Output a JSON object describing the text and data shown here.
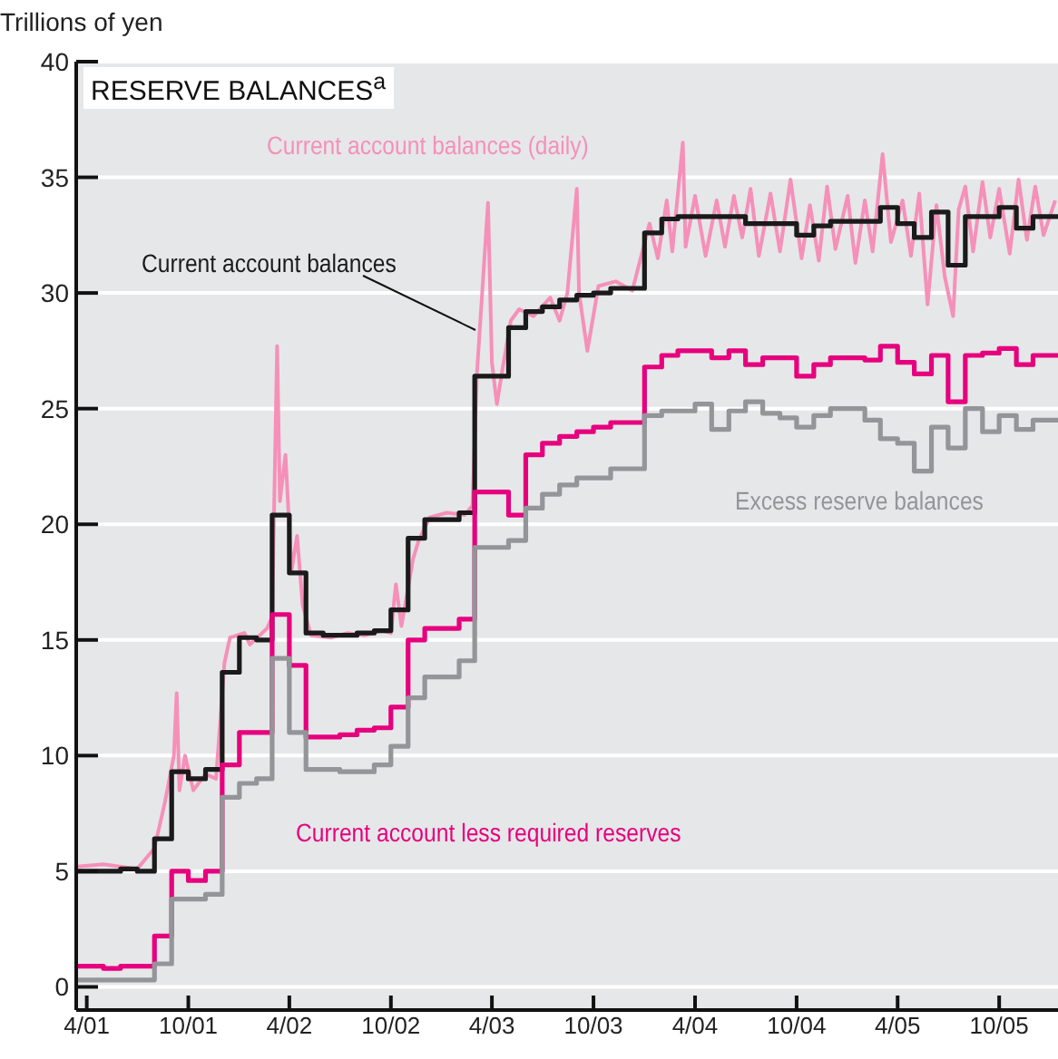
{
  "chart_data": {
    "type": "step",
    "title": "RESERVE BALANCES$^{a}$",
    "ylabel": "Trillions of yen",
    "xlim": [
      "2001-03-13",
      "2006-01-15"
    ],
    "xticks": [
      {
        "value": "2001-04-01",
        "label": "4/01"
      },
      {
        "value": "2001-10-01",
        "label": "10/01"
      },
      {
        "value": "2002-04-01",
        "label": "4/02"
      },
      {
        "value": "2002-10-01",
        "label": "10/02"
      },
      {
        "value": "2003-04-01",
        "label": "4/03"
      },
      {
        "value": "2003-10-01",
        "label": "10/03"
      },
      {
        "value": "2004-04-01",
        "label": "4/04"
      },
      {
        "value": "2004-10-01",
        "label": "10/04"
      },
      {
        "value": "2005-04-01",
        "label": "4/05"
      },
      {
        "value": "2005-10-01",
        "label": "10/05"
      }
    ],
    "ylim": [
      -1,
      40
    ],
    "yticks": [
      0,
      5,
      10,
      15,
      20,
      25,
      30,
      35,
      40
    ],
    "grid": "y",
    "series": [
      {
        "name": "Current account balances (daily)",
        "type": "line",
        "color": "#f590b9",
        "x": [
          "2001-03-15",
          "2001-05-01",
          "2001-07-01",
          "2001-08-01",
          "2001-08-20",
          "2001-09-05",
          "2001-09-10",
          "2001-09-15",
          "2001-09-25",
          "2001-10-10",
          "2001-11-01",
          "2001-11-20",
          "2001-12-05",
          "2001-12-15",
          "2002-01-10",
          "2002-01-20",
          "2002-02-20",
          "2002-03-01",
          "2002-03-10",
          "2002-03-15",
          "2002-03-25",
          "2002-04-05",
          "2002-04-15",
          "2002-04-25",
          "2002-05-10",
          "2002-06-15",
          "2002-07-15",
          "2002-08-15",
          "2002-09-15",
          "2002-10-01",
          "2002-10-10",
          "2002-10-20",
          "2002-11-10",
          "2002-11-20",
          "2002-12-10",
          "2003-01-10",
          "2003-02-10",
          "2003-02-25",
          "2003-03-05",
          "2003-03-25",
          "2003-04-01",
          "2003-04-10",
          "2003-04-20",
          "2003-05-05",
          "2003-05-20",
          "2003-06-15",
          "2003-07-15",
          "2003-08-01",
          "2003-08-15",
          "2003-09-01",
          "2003-09-05",
          "2003-09-20",
          "2003-10-10",
          "2003-11-10",
          "2003-12-10",
          "2004-01-10",
          "2004-01-25",
          "2004-02-10",
          "2004-02-20",
          "2004-03-10",
          "2004-03-15",
          "2004-04-01",
          "2004-04-20",
          "2004-05-10",
          "2004-05-25",
          "2004-06-10",
          "2004-06-25",
          "2004-07-10",
          "2004-07-25",
          "2004-08-15",
          "2004-09-01",
          "2004-09-20",
          "2004-10-10",
          "2004-10-25",
          "2004-11-10",
          "2004-11-25",
          "2004-12-10",
          "2005-01-01",
          "2005-01-15",
          "2005-02-01",
          "2005-02-15",
          "2005-03-05",
          "2005-03-20",
          "2005-04-10",
          "2005-04-25",
          "2005-05-10",
          "2005-05-25",
          "2005-06-10",
          "2005-06-25",
          "2005-07-10",
          "2005-07-20",
          "2005-08-01",
          "2005-08-15",
          "2005-09-01",
          "2005-09-15",
          "2005-10-01",
          "2005-10-20",
          "2005-11-05",
          "2005-11-20",
          "2005-12-05",
          "2005-12-20",
          "2006-01-10"
        ],
        "values": [
          5.2,
          5.3,
          5.1,
          6.0,
          8.0,
          10.0,
          12.7,
          8.5,
          10.0,
          8.5,
          9.2,
          9.0,
          14.0,
          15.1,
          15.3,
          14.8,
          15.5,
          16.0,
          27.7,
          21.0,
          23.0,
          18.0,
          19.5,
          16.5,
          15.2,
          15.1,
          15.3,
          15.2,
          15.4,
          15.3,
          17.4,
          15.6,
          18.5,
          19.3,
          20.3,
          20.5,
          20.4,
          20.8,
          26.5,
          33.9,
          27.0,
          25.2,
          26.7,
          28.8,
          29.3,
          29.0,
          29.8,
          28.8,
          30.0,
          34.5,
          30.0,
          27.5,
          30.3,
          30.5,
          30.1,
          33.0,
          31.5,
          34.0,
          31.8,
          36.5,
          32.0,
          34.2,
          31.6,
          34.0,
          32.0,
          34.2,
          32.4,
          34.5,
          31.6,
          34.3,
          31.8,
          34.9,
          31.5,
          33.8,
          31.4,
          34.6,
          31.9,
          34.2,
          31.3,
          34.0,
          31.8,
          36.0,
          32.2,
          34.0,
          31.6,
          34.3,
          29.5,
          33.8,
          30.7,
          29.0,
          33.6,
          34.6,
          31.8,
          34.8,
          32.4,
          34.5,
          31.7,
          34.9,
          32.3,
          34.6,
          32.5,
          34.0
        ]
      },
      {
        "name": "Current account balances",
        "color": "#1a1a1a",
        "x": [
          "2001-03-13",
          "2001-06",
          "2001-07",
          "2001-08",
          "2001-09",
          "2001-10",
          "2001-11",
          "2001-12",
          "2002-01",
          "2002-02",
          "2002-03",
          "2002-04",
          "2002-05",
          "2002-06",
          "2002-08",
          "2002-09",
          "2002-10",
          "2002-11",
          "2002-12",
          "2003-02",
          "2003-03",
          "2003-05",
          "2003-06",
          "2003-07",
          "2003-08",
          "2003-09",
          "2003-10",
          "2003-11",
          "2004-01",
          "2004-02",
          "2004-03",
          "2004-07",
          "2004-10",
          "2004-11",
          "2004-12",
          "2005-03",
          "2005-04",
          "2005-05",
          "2005-06",
          "2005-07",
          "2005-08",
          "2005-10",
          "2005-11",
          "2005-12",
          "2006-01-15"
        ],
        "values": [
          5.0,
          5.1,
          5.0,
          6.4,
          9.3,
          9.0,
          9.4,
          13.6,
          15.1,
          15.0,
          20.4,
          17.9,
          15.3,
          15.2,
          15.3,
          15.4,
          16.3,
          19.4,
          20.2,
          20.5,
          26.4,
          28.5,
          29.2,
          29.4,
          29.7,
          29.9,
          30.0,
          30.2,
          32.6,
          33.2,
          33.3,
          33.0,
          32.5,
          32.9,
          33.1,
          33.7,
          33.0,
          32.4,
          33.5,
          31.2,
          33.3,
          33.7,
          32.8,
          33.3,
          33.3
        ]
      },
      {
        "name": "Current account less required reserves",
        "color": "#e6007e",
        "x": [
          "2001-03-13",
          "2001-05",
          "2001-06",
          "2001-08",
          "2001-09",
          "2001-10",
          "2001-11",
          "2001-12",
          "2002-01",
          "2002-03",
          "2002-04",
          "2002-05",
          "2002-07",
          "2002-08",
          "2002-09",
          "2002-10",
          "2002-11",
          "2002-12",
          "2003-02",
          "2003-03",
          "2003-05",
          "2003-06",
          "2003-07",
          "2003-08",
          "2003-09",
          "2003-10",
          "2003-11",
          "2004-01",
          "2004-02",
          "2004-03",
          "2004-05",
          "2004-06",
          "2004-07",
          "2004-08",
          "2004-10",
          "2004-11",
          "2004-12",
          "2005-02",
          "2005-03",
          "2005-04",
          "2005-05",
          "2005-06",
          "2005-07",
          "2005-08",
          "2005-09",
          "2005-10",
          "2005-11",
          "2005-12",
          "2006-01-15"
        ],
        "values": [
          0.9,
          0.8,
          0.9,
          2.2,
          5.0,
          4.6,
          5.0,
          9.6,
          11.0,
          16.1,
          13.9,
          10.8,
          10.9,
          11.1,
          11.2,
          12.1,
          15.0,
          15.5,
          15.9,
          21.4,
          20.4,
          23.0,
          23.5,
          23.8,
          24.0,
          24.2,
          24.4,
          26.8,
          27.3,
          27.5,
          27.2,
          27.5,
          26.9,
          27.2,
          26.4,
          26.9,
          27.2,
          27.1,
          27.7,
          27.0,
          26.5,
          27.3,
          25.3,
          27.3,
          27.4,
          27.6,
          26.9,
          27.3,
          27.3
        ]
      },
      {
        "name": "Excess reserve balances",
        "color": "#939598",
        "x": [
          "2001-03-13",
          "2001-08",
          "2001-09",
          "2001-11",
          "2001-12",
          "2002-01",
          "2002-02",
          "2002-03",
          "2002-04",
          "2002-05",
          "2002-07",
          "2002-09",
          "2002-10",
          "2002-11",
          "2002-12",
          "2003-02",
          "2003-03",
          "2003-05",
          "2003-06",
          "2003-07",
          "2003-08",
          "2003-09",
          "2003-11",
          "2004-01",
          "2004-02",
          "2004-04",
          "2004-05",
          "2004-06",
          "2004-07",
          "2004-08",
          "2004-09",
          "2004-10",
          "2004-11",
          "2004-12",
          "2005-02",
          "2005-03",
          "2005-04",
          "2005-05",
          "2005-06",
          "2005-07",
          "2005-08",
          "2005-09",
          "2005-10",
          "2005-11",
          "2005-12",
          "2006-01-15"
        ],
        "values": [
          0.3,
          1.0,
          3.8,
          4.0,
          8.2,
          8.8,
          9.0,
          14.2,
          11.0,
          9.4,
          9.3,
          9.6,
          10.4,
          12.5,
          13.4,
          14.1,
          19.0,
          19.3,
          20.7,
          21.3,
          21.7,
          22.0,
          22.4,
          24.7,
          24.9,
          25.2,
          24.1,
          24.9,
          25.3,
          24.8,
          24.6,
          24.2,
          24.7,
          25.0,
          24.5,
          23.7,
          23.5,
          22.3,
          24.2,
          23.3,
          25.0,
          24.0,
          24.7,
          24.1,
          24.5,
          24.5
        ]
      }
    ]
  }
}
